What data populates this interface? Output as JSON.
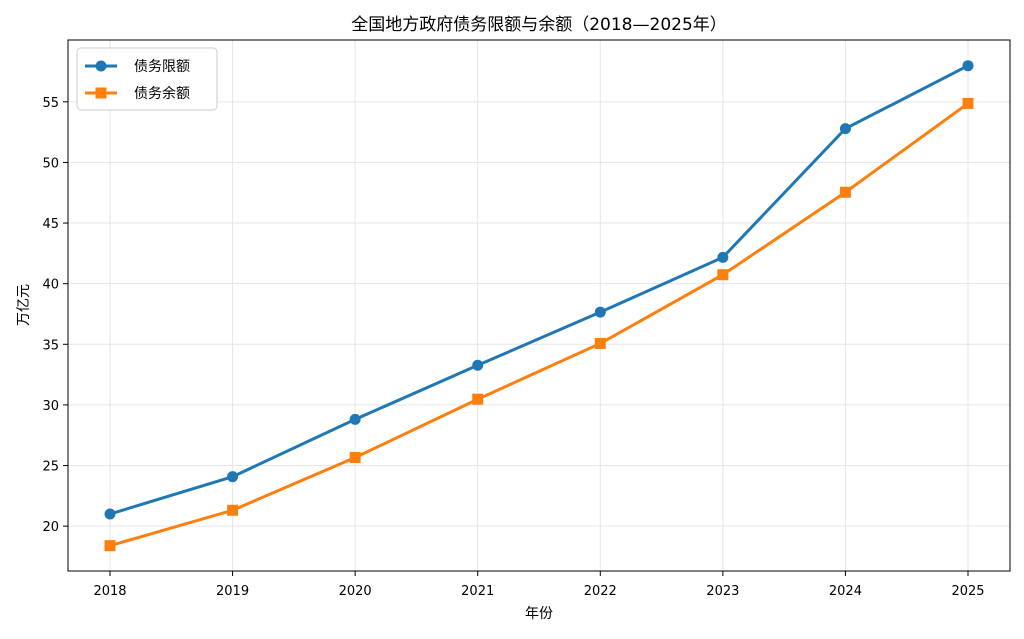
{
  "chart_data": {
    "type": "line",
    "title": "全国地方政府债务限额与余额（2018—2025年）",
    "xlabel": "年份",
    "ylabel": "万亿元",
    "categories": [
      "2018",
      "2019",
      "2020",
      "2021",
      "2022",
      "2023",
      "2024",
      "2025"
    ],
    "yticks": [
      20,
      25,
      30,
      35,
      40,
      45,
      50,
      55
    ],
    "ylim": [
      16.3,
      60.1
    ],
    "grid": true,
    "legend_position": "top-left",
    "series": [
      {
        "name": "债务限额",
        "color": "#1f77b4",
        "marker": "circle",
        "values": [
          21.0,
          24.08,
          28.81,
          33.27,
          37.65,
          42.17,
          52.79,
          57.98
        ]
      },
      {
        "name": "债务余额",
        "color": "#ff7f0e",
        "marker": "square",
        "values": [
          18.39,
          21.31,
          25.66,
          30.47,
          35.07,
          40.74,
          47.54,
          54.87
        ]
      }
    ]
  }
}
